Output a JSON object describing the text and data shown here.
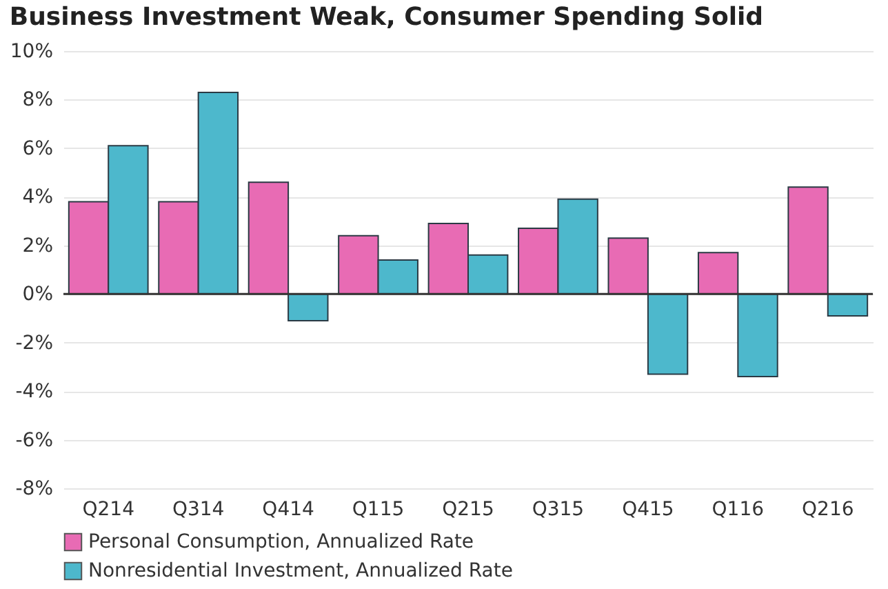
{
  "chart_data": {
    "type": "bar",
    "title": "Business Investment Weak, Consumer Spending Solid",
    "categories": [
      "Q214",
      "Q314",
      "Q414",
      "Q115",
      "Q215",
      "Q315",
      "Q415",
      "Q116",
      "Q216"
    ],
    "series": [
      {
        "name": "Personal Consumption, Annualized Rate",
        "color": "#e86bb4",
        "values": [
          3.8,
          3.8,
          4.6,
          2.4,
          2.9,
          2.7,
          2.3,
          1.7,
          4.4
        ]
      },
      {
        "name": "Nonresidential Investment, Annualized Rate",
        "color": "#4db8cc",
        "values": [
          6.1,
          8.3,
          -1.1,
          1.4,
          1.6,
          3.9,
          -3.3,
          -3.4,
          -0.9
        ]
      }
    ],
    "ylim": [
      -8,
      10
    ],
    "yticks": [
      {
        "value": -8,
        "label": "-8%"
      },
      {
        "value": -6,
        "label": "-6%"
      },
      {
        "value": -4,
        "label": "-4%"
      },
      {
        "value": -2,
        "label": "-2%"
      },
      {
        "value": 0,
        "label": "0%"
      },
      {
        "value": 2,
        "label": "2%"
      },
      {
        "value": 4,
        "label": "4%"
      },
      {
        "value": 6,
        "label": "6%"
      },
      {
        "value": 8,
        "label": "8%"
      },
      {
        "value": 10,
        "label": "10%"
      }
    ],
    "ref_lines": [
      {
        "axis": "y",
        "value": 0,
        "color": "#333333"
      }
    ],
    "grid": "y",
    "legend": "bottom"
  }
}
